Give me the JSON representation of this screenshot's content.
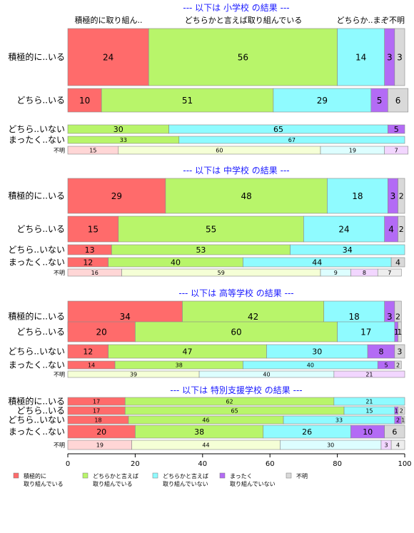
{
  "chart_data": {
    "type": "bar",
    "orientation": "horizontal",
    "stacked": "percent",
    "xlim": [
      0,
      100
    ],
    "xticks": [
      0,
      20,
      40,
      60,
      80,
      100
    ],
    "grid": false,
    "legend_position": "bottom",
    "column_headers": [
      "積極的に取り組ん..",
      "どちらかと言えば取り組んでいる",
      "どちらか..ま..",
      "ぞ不明"
    ],
    "categories": [
      {
        "key": "c1",
        "legend": [
          "積極的に",
          "取り組んでいる"
        ],
        "color": "#FF6B6B",
        "light": "#FFD6D6"
      },
      {
        "key": "c2",
        "legend": [
          "どちらかと言えば",
          "取り組んでいる"
        ],
        "color": "#B8F56A",
        "light": "#F5FFD6"
      },
      {
        "key": "c3",
        "legend": [
          "どちらかと言えば",
          "取り組んでいない"
        ],
        "color": "#8FFBFF",
        "light": "#DDFEFF"
      },
      {
        "key": "c4",
        "legend": [
          "まったく",
          "取り組んでいない"
        ],
        "color": "#B36BF5",
        "light": "#F2D6FF"
      },
      {
        "key": "c5",
        "legend": [
          "不明"
        ],
        "color": "#D9D9D9",
        "light": "#EEEEEE"
      }
    ],
    "panels": [
      {
        "title": "--- 以下は 小学校 の結果 ---",
        "rows": [
          {
            "label": "積極的に..いる",
            "values": [
              24,
              56,
              14,
              3,
              3
            ]
          },
          {
            "label": "どちら..いる",
            "values": [
              10,
              51,
              29,
              5,
              6
            ]
          },
          {
            "label": "どちら..いない",
            "values": [
              0,
              30,
              65,
              5,
              0
            ]
          },
          {
            "label": "まったく..ない",
            "values": [
              0,
              33,
              67,
              0,
              0
            ]
          },
          {
            "label": "不明",
            "values": [
              15,
              60,
              19,
              7,
              0
            ]
          }
        ]
      },
      {
        "title": "--- 以下は 中学校 の結果 ---",
        "rows": [
          {
            "label": "積極的に..いる",
            "values": [
              29,
              48,
              18,
              3,
              2
            ]
          },
          {
            "label": "どちら..いる",
            "values": [
              15,
              55,
              24,
              4,
              2
            ]
          },
          {
            "label": "どちら..いない",
            "values": [
              13,
              53,
              34,
              0,
              0
            ]
          },
          {
            "label": "まったく..ない",
            "values": [
              12,
              40,
              44,
              0,
              4
            ]
          },
          {
            "label": "不明",
            "values": [
              16,
              59,
              9,
              8,
              7
            ]
          }
        ]
      },
      {
        "title": "--- 以下は 高等学校 の結果 ---",
        "rows": [
          {
            "label": "積極的に..いる",
            "values": [
              34,
              42,
              18,
              3,
              2
            ]
          },
          {
            "label": "どちら..いる",
            "values": [
              20,
              60,
              17,
              1,
              1
            ]
          },
          {
            "label": "どちら..いない",
            "values": [
              12,
              47,
              30,
              8,
              3
            ]
          },
          {
            "label": "まったく..ない",
            "values": [
              14,
              38,
              40,
              5,
              2
            ]
          },
          {
            "label": "不明",
            "values": [
              0,
              39,
              40,
              21,
              0
            ]
          }
        ]
      },
      {
        "title": "--- 以下は 特別支援学校 の結果 ---",
        "rows": [
          {
            "label": "積極的に..いる",
            "values": [
              17,
              62,
              21,
              0,
              0
            ]
          },
          {
            "label": "どちら..いる",
            "values": [
              17,
              65,
              15,
              1,
              2
            ]
          },
          {
            "label": "どちら..いない",
            "values": [
              18,
              46,
              33,
              2,
              1
            ]
          },
          {
            "label": "まったく..ない",
            "values": [
              20,
              38,
              26,
              10,
              6
            ]
          },
          {
            "label": "不明",
            "values": [
              19,
              44,
              30,
              3,
              4
            ]
          }
        ]
      }
    ]
  }
}
